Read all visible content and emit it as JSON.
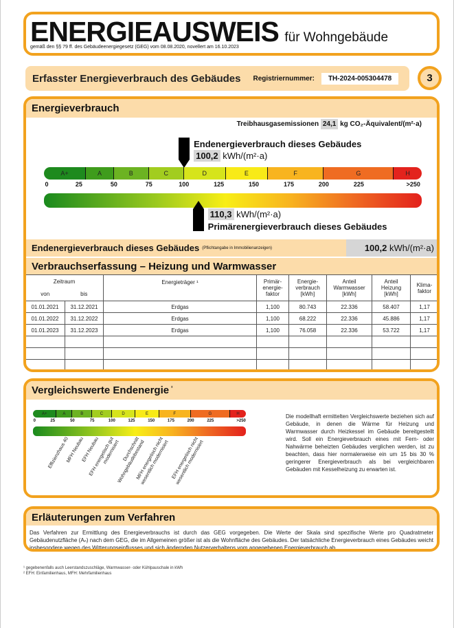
{
  "header": {
    "title": "ENERGIEAUSWEIS",
    "subtitle": "für Wohngebäude",
    "legal": "gemäß den §§ 79 ff. des Gebäudeenergiegesetz (GEG) vom 08.08.2020, novellert am 16.10.2023"
  },
  "banner": {
    "title": "Erfasster Energieverbrauch des Gebäudes",
    "reg_label": "Registriernummer:",
    "reg_value": "TH-2024-005304478",
    "page": "3"
  },
  "energie": {
    "title": "Energieverbrauch",
    "ghg_label": "Treibhausgasemissionen",
    "ghg_value": "24,1",
    "ghg_unit": "kg CO₂-Äquivalent/(m²·a)",
    "end_label": "Endenergieverbrauch dieses Gebäudes",
    "end_value": "100,2",
    "unit": "kWh/(m²·a)",
    "prim_label": "Primärenergieverbrauch dieses Gebäudes",
    "prim_value": "110,3",
    "end_numeric": 100.2,
    "prim_numeric": 110.3,
    "classes": [
      "A+",
      "A",
      "B",
      "C",
      "D",
      "E",
      "F",
      "G",
      "H"
    ],
    "class_bounds": [
      0,
      30,
      50,
      75,
      100,
      130,
      160,
      200,
      250,
      270
    ],
    "class_colors": [
      "#1e8a1e",
      "#3f9c1c",
      "#6cb322",
      "#a2cd1f",
      "#d6e41b",
      "#f8ea17",
      "#f8b41f",
      "#ef6c22",
      "#e3231d"
    ],
    "ticks": [
      "0",
      "25",
      "50",
      "75",
      "100",
      "125",
      "150",
      "175",
      "200",
      "225",
      ">250"
    ],
    "footer_label": "Endenergieverbrauch dieses Gebäudes",
    "footer_note": "(Pflichtangabe in Immobilienanzeigen)",
    "footer_value": "100,2",
    "footer_unit": "kWh/(m²·a)"
  },
  "verbrauch": {
    "title": "Verbrauchserfassung – Heizung und Warmwasser",
    "head": {
      "zeitraum": "Zeitraum",
      "von": "von",
      "bis": "bis",
      "traeger": "Energieträger ¹",
      "prim": "Primär-energie-faktor",
      "ev": "Energie-verbrauch [kWh]",
      "ww": "Anteil Warmwasser [kWh]",
      "hz": "Anteil Heizung [kWh]",
      "klima": "Klima-faktor"
    },
    "rows": [
      [
        "01.01.2021",
        "31.12.2021",
        "Erdgas",
        "1,100",
        "80.743",
        "22.336",
        "58.407",
        "1,17"
      ],
      [
        "01.01.2022",
        "31.12.2022",
        "Erdgas",
        "1,100",
        "68.222",
        "22.336",
        "45.886",
        "1,17"
      ],
      [
        "01.01.2023",
        "31.12.2023",
        "Erdgas",
        "1,100",
        "76.058",
        "22.336",
        "53.722",
        "1,17"
      ],
      [
        "",
        "",
        "",
        "",
        "",
        "",
        "",
        ""
      ],
      [
        "",
        "",
        "",
        "",
        "",
        "",
        "",
        ""
      ],
      [
        "",
        "",
        "",
        "",
        "",
        "",
        "",
        ""
      ]
    ]
  },
  "vergleich": {
    "title": "Vergleichswerte Endenergie",
    "sup": "²",
    "refs": [
      {
        "label": "Effizienzhaus 40",
        "value": 40
      },
      {
        "label": "MFH Neubau",
        "value": 55
      },
      {
        "label": "EFH Neubau",
        "value": 60
      },
      {
        "label": "EFH energetisch gut modernisiert",
        "value": 85
      },
      {
        "label": "Durchschnitt Wohngebäudebestand",
        "value": 130
      },
      {
        "label": "MFH energetisch nicht wesentlich modernisiert",
        "value": 160
      },
      {
        "label": "EFH energetisch nicht wesentlich modernisiert",
        "value": 205
      }
    ],
    "text": "Die modellhaft ermittelten Vergleichswerte beziehen sich auf Gebäude, in denen die Wärme für Heizung und Warmwasser durch Heizkessel im Gebäude bereitgestellt wird. Soll ein Energieverbrauch eines mit Fern- oder Nahwärme beheizten Gebäudes verglichen werden, ist zu beachten, dass hier normalerweise ein um 15 bis 30 % geringerer Energieverbrauch als bei vergleichbaren Gebäuden mit Kesselheizung zu erwarten ist."
  },
  "erl": {
    "title": "Erläuterungen zum Verfahren",
    "text": "Das Verfahren zur Ermittlung des Energieverbrauchs ist durch das GEG vorgegeben. Die Werte der Skala sind spezifische Werte pro Quadratmeter Gebäudenutzfläche (Aₙ) nach dem GEG, die im Allgemeinen größer ist als die Wohnfläche des Gebäudes. Der tatsächliche Energieverbrauch eines Gebäudes weicht insbesondere wegen des Witterungseinflusses und sich ändernden Nutzerverhaltens vom angegebenen Energieverbrauch ab."
  },
  "footnotes": [
    "¹ gegebenenfalls auch Leerstandszuschläge, Warmwasser- oder Kühlpauschale in kWh",
    "² EFH: Einfamilienhaus, MFH: Mehrfamilienhaus"
  ]
}
